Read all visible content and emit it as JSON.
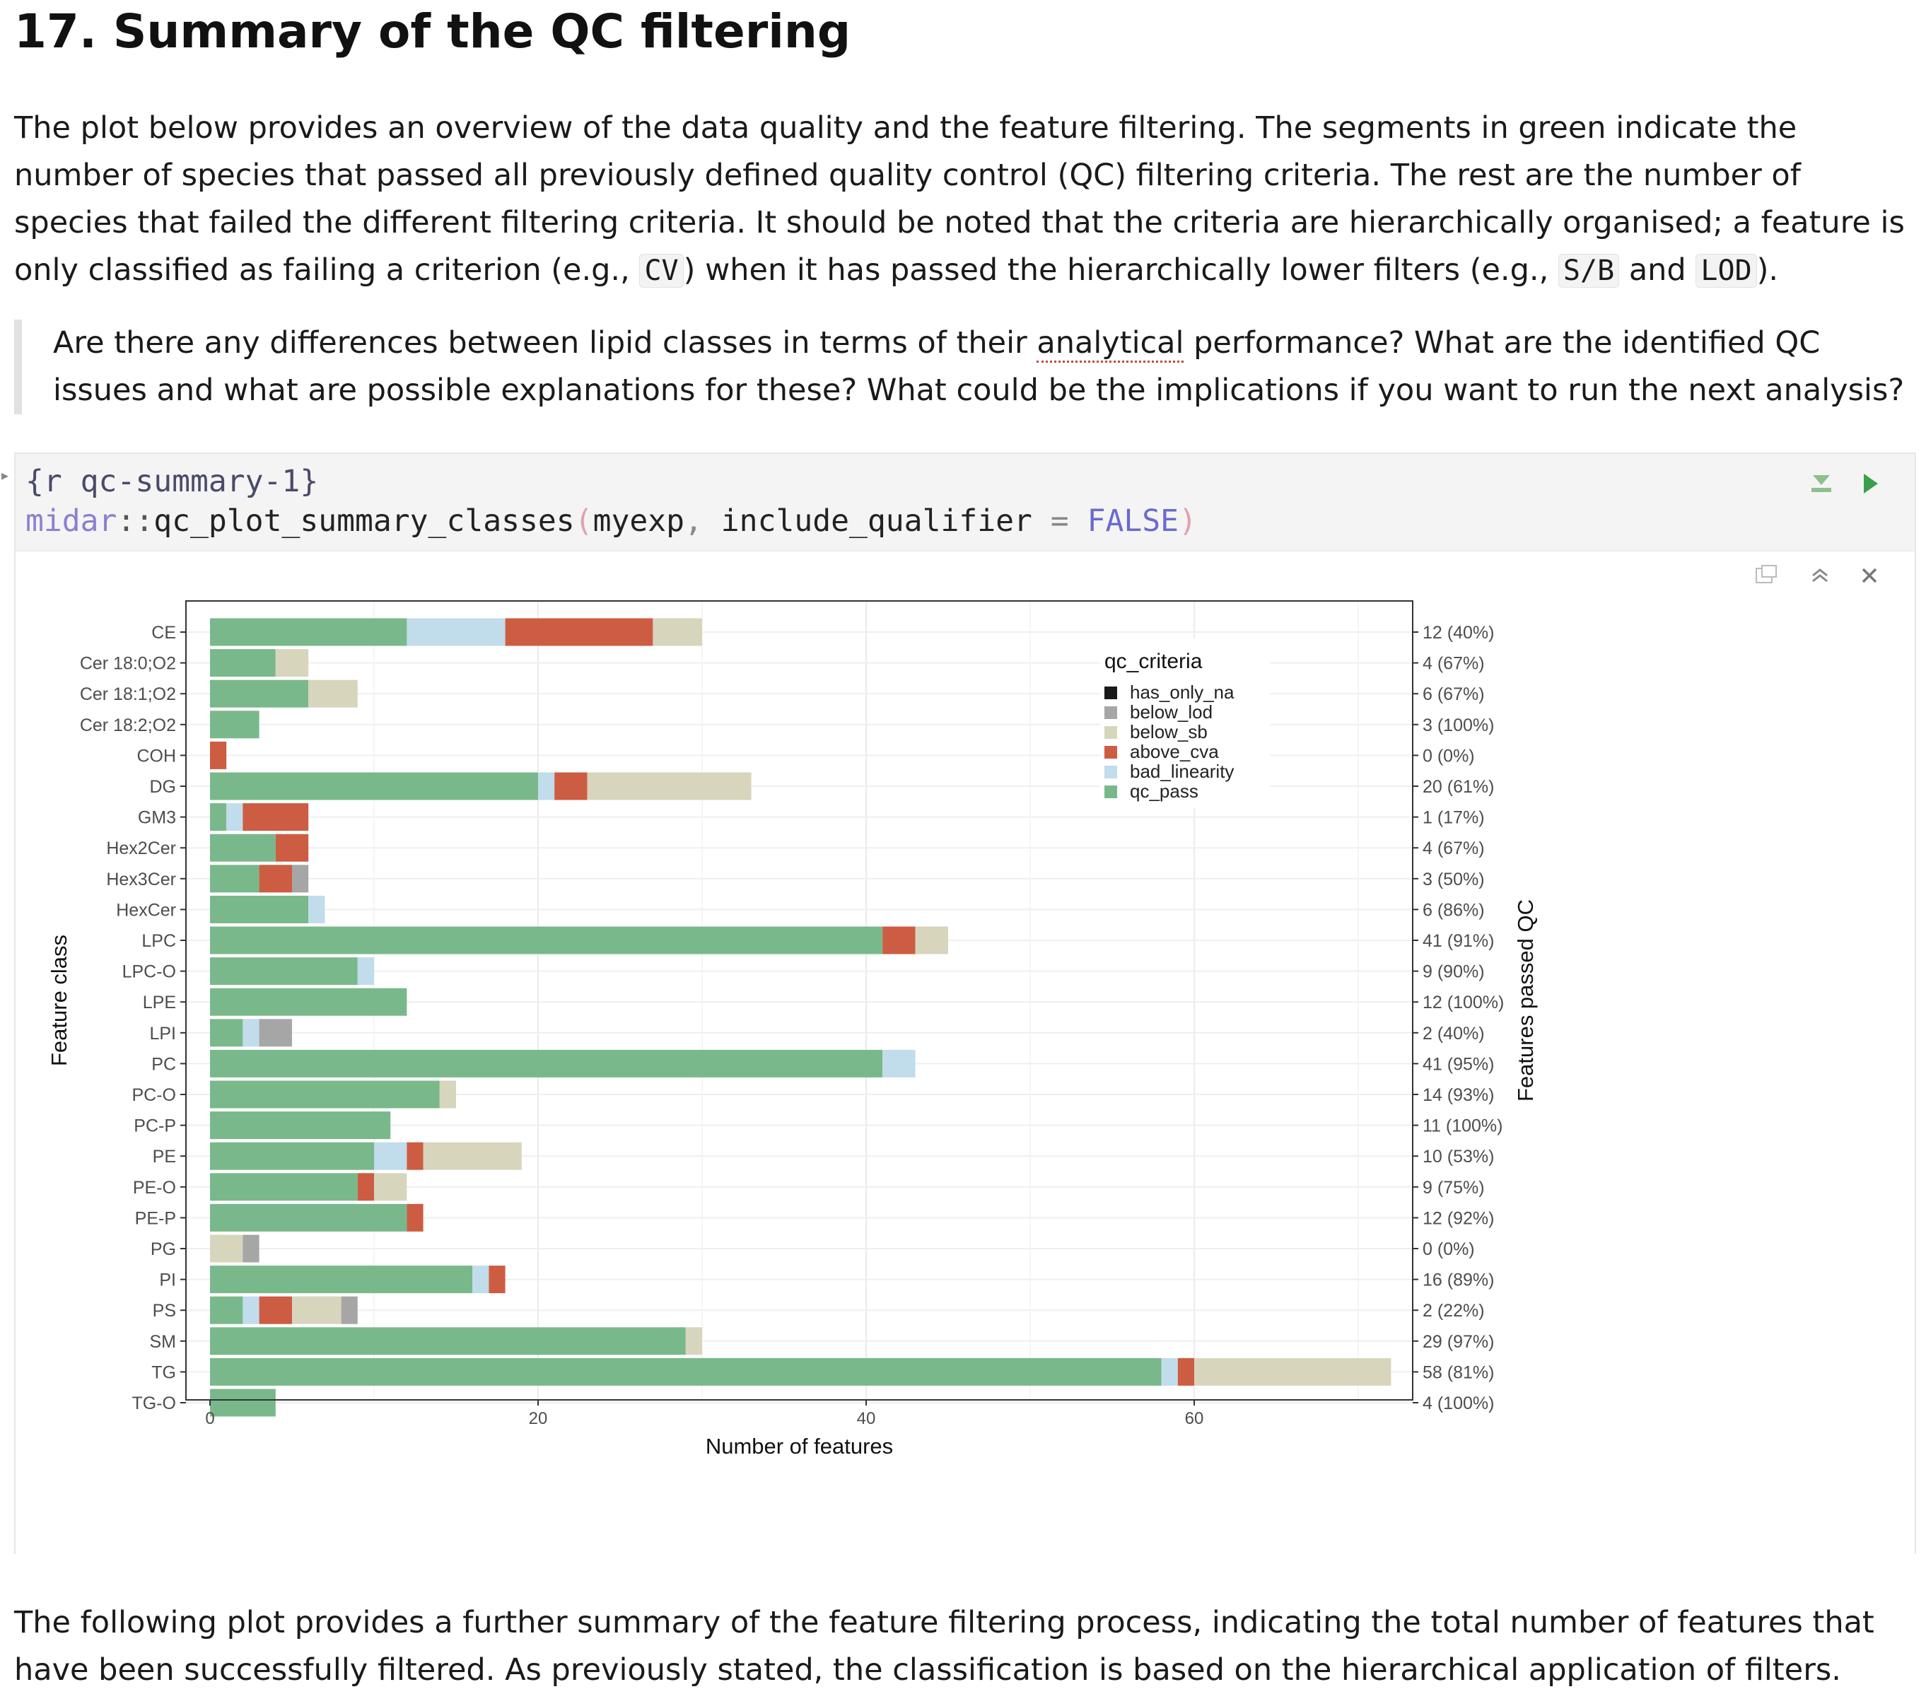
{
  "heading": "17. Summary of the QC filtering",
  "intro": [
    {
      "t": "The plot below provides an overview of the data quality and the feature filtering. The segments in green indicate the number of species that passed all previously defined quality control (QC) filtering criteria. The rest are the number of species that failed the different filtering criteria. It should be noted that the criteria are hierarchically organised; a feature is only classified as failing a criterion (e.g., "
    },
    {
      "c": "CV"
    },
    {
      "t": ") when it has passed the hierarchically lower filters (e.g., "
    },
    {
      "c": "S/B"
    },
    {
      "t": " and "
    },
    {
      "c": "LOD"
    },
    {
      "t": ")."
    }
  ],
  "question": {
    "before": "Are there any differences between lipid classes in terms of their ",
    "underlined": "analytical",
    "after": " performance? What are the identified QC issues and what are possible explanations for these? What could be the implications if you want to run the next analysis?"
  },
  "code": {
    "header": "{r qc-summary-1}",
    "pkg": "midar",
    "sep": "::",
    "fn": "qc_plot_summary_classes",
    "open": "(",
    "arg1": "myexp",
    "comma": ", ",
    "argname": "include_qualifier",
    "eq": " = ",
    "argval": "FALSE",
    "close": ")"
  },
  "colors": {
    "has_only_na": "#1a1a1a",
    "below_lod": "#a6a6a6",
    "below_sb": "#d8d5bd",
    "above_cva": "#cc5d42",
    "bad_linearity": "#c1dcea",
    "qc_pass": "#79b88a"
  },
  "chart_data": {
    "type": "bar",
    "orientation": "horizontal",
    "stacked": true,
    "xlabel": "Number of features",
    "ylabel": "Feature class",
    "y2label": "Features passed QC",
    "xlim": [
      0,
      72
    ],
    "xticks": [
      0,
      20,
      40,
      60
    ],
    "legend": {
      "title": "qc_criteria",
      "placement": "top-right inside",
      "entries": [
        "has_only_na",
        "below_lod",
        "below_sb",
        "above_cva",
        "bad_linearity",
        "qc_pass"
      ]
    },
    "stack_order": [
      "qc_pass",
      "bad_linearity",
      "above_cva",
      "below_sb",
      "below_lod"
    ],
    "categories": [
      "CE",
      "Cer 18:0;O2",
      "Cer 18:1;O2",
      "Cer 18:2;O2",
      "COH",
      "DG",
      "GM3",
      "Hex2Cer",
      "Hex3Cer",
      "HexCer",
      "LPC",
      "LPC-O",
      "LPE",
      "LPI",
      "PC",
      "PC-O",
      "PC-P",
      "PE",
      "PE-O",
      "PE-P",
      "PG",
      "PI",
      "PS",
      "SM",
      "TG",
      "TG-O"
    ],
    "series": [
      {
        "name": "qc_pass",
        "values": [
          12,
          4,
          6,
          3,
          0,
          20,
          1,
          4,
          3,
          6,
          41,
          9,
          12,
          2,
          41,
          14,
          11,
          10,
          9,
          12,
          0,
          16,
          2,
          29,
          58,
          4
        ]
      },
      {
        "name": "bad_linearity",
        "values": [
          6,
          0,
          0,
          0,
          0,
          1,
          1,
          0,
          0,
          1,
          0,
          1,
          0,
          1,
          2,
          0,
          0,
          2,
          0,
          0,
          0,
          1,
          1,
          0,
          1,
          0
        ]
      },
      {
        "name": "above_cva",
        "values": [
          9,
          0,
          0,
          0,
          1,
          2,
          4,
          2,
          2,
          0,
          2,
          0,
          0,
          0,
          0,
          0,
          0,
          1,
          1,
          1,
          0,
          1,
          2,
          0,
          1,
          0
        ]
      },
      {
        "name": "below_sb",
        "values": [
          3,
          2,
          3,
          0,
          0,
          10,
          0,
          0,
          0,
          0,
          2,
          0,
          0,
          0,
          0,
          1,
          0,
          6,
          2,
          0,
          2,
          0,
          3,
          1,
          12,
          0
        ]
      },
      {
        "name": "below_lod",
        "values": [
          0,
          0,
          0,
          0,
          0,
          0,
          0,
          0,
          1,
          0,
          0,
          0,
          0,
          2,
          0,
          0,
          0,
          0,
          0,
          0,
          1,
          0,
          1,
          0,
          0,
          0
        ]
      }
    ],
    "right_labels": [
      "12 (40%)",
      "4 (67%)",
      "6 (67%)",
      "3 (100%)",
      "0 (0%)",
      "20 (61%)",
      "1 (17%)",
      "4 (67%)",
      "3 (50%)",
      "6 (86%)",
      "41 (91%)",
      "9 (90%)",
      "12 (100%)",
      "2 (40%)",
      "41 (95%)",
      "14 (93%)",
      "11 (100%)",
      "10 (53%)",
      "9 (75%)",
      "12 (92%)",
      "0 (0%)",
      "16 (89%)",
      "2 (22%)",
      "29 (97%)",
      "58 (81%)",
      "4 (100%)"
    ]
  },
  "after_text": "The following plot provides a further summary of the feature filtering process, indicating the total number of features that have been successfully filtered. As previously stated, the classification is based on the hierarchical application of filters."
}
